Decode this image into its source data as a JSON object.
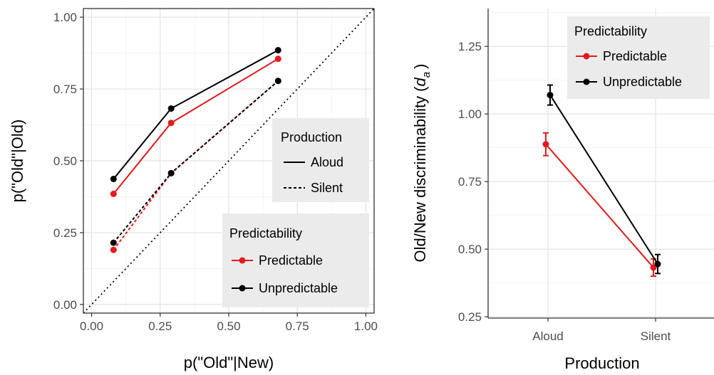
{
  "colors": {
    "predictable": "#e41a1c",
    "unpredictable": "#000000"
  },
  "chart_data": [
    {
      "type": "line",
      "panel": "left",
      "xlabel": "p(\"Old\"|New)",
      "ylabel": "p(\"Old\"|Old)",
      "xlim": [
        -0.03,
        1.03
      ],
      "ylim": [
        -0.03,
        1.03
      ],
      "x_ticks": [
        "0.00",
        "0.25",
        "0.50",
        "0.75",
        "1.00"
      ],
      "y_ticks": [
        "0.00",
        "0.25",
        "0.50",
        "0.75",
        "1.00"
      ],
      "reference_line": "diagonal y = x (dotted)",
      "grid": true,
      "series": [
        {
          "predictability": "Predictable",
          "production": "Aloud",
          "x": [
            0.08,
            0.29,
            0.68
          ],
          "y": [
            0.385,
            0.632,
            0.855
          ]
        },
        {
          "predictability": "Unpredictable",
          "production": "Aloud",
          "x": [
            0.08,
            0.29,
            0.68
          ],
          "y": [
            0.437,
            0.682,
            0.885
          ]
        },
        {
          "predictability": "Predictable",
          "production": "Silent",
          "x": [
            0.08,
            0.29,
            0.68
          ],
          "y": [
            0.19,
            0.457,
            0.778
          ]
        },
        {
          "predictability": "Unpredictable",
          "production": "Silent",
          "x": [
            0.08,
            0.29,
            0.68
          ],
          "y": [
            0.215,
            0.457,
            0.778
          ]
        }
      ],
      "legends": [
        {
          "title": "Production",
          "entries": [
            "Aloud",
            "Silent"
          ],
          "placement": "middle-right"
        },
        {
          "title": "Predictability",
          "entries": [
            "Predictable",
            "Unpredictable"
          ],
          "placement": "bottom-right"
        }
      ]
    },
    {
      "type": "line",
      "panel": "right",
      "xlabel": "Production",
      "ylabel_prefix": "Old/New discriminability (",
      "ylabel_var": "d",
      "ylabel_sub": "a",
      "ylabel_suffix": ")",
      "categories": [
        "Aloud",
        "Silent"
      ],
      "y_ticks": [
        "0.25",
        "0.50",
        "0.75",
        "1.00",
        "1.25"
      ],
      "ylim": [
        0.245,
        1.39
      ],
      "grid": true,
      "series": [
        {
          "name": "Predictable",
          "values": [
            0.888,
            0.432
          ],
          "error": [
            0.042,
            0.032
          ]
        },
        {
          "name": "Unpredictable",
          "values": [
            1.07,
            0.445
          ],
          "error": [
            0.037,
            0.035
          ]
        }
      ],
      "legend": {
        "title": "Predictability",
        "entries": [
          "Predictable",
          "Unpredictable"
        ],
        "placement": "top-right"
      }
    }
  ]
}
